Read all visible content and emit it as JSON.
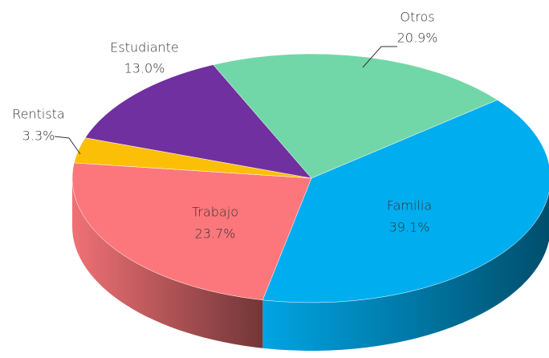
{
  "chart_data": {
    "type": "pie",
    "categories": [
      "Familia",
      "Trabajo",
      "Rentista",
      "Estudiante",
      "Otros"
    ],
    "values": [
      39.1,
      23.7,
      3.3,
      13.0,
      20.9
    ],
    "value_labels": [
      "39.1%",
      "23.7%",
      "3.3%",
      "13.0%",
      "20.9%"
    ],
    "colors": [
      "#00adef",
      "#fc777b",
      "#fbbf08",
      "#7030a0",
      "#72d7a8"
    ]
  }
}
